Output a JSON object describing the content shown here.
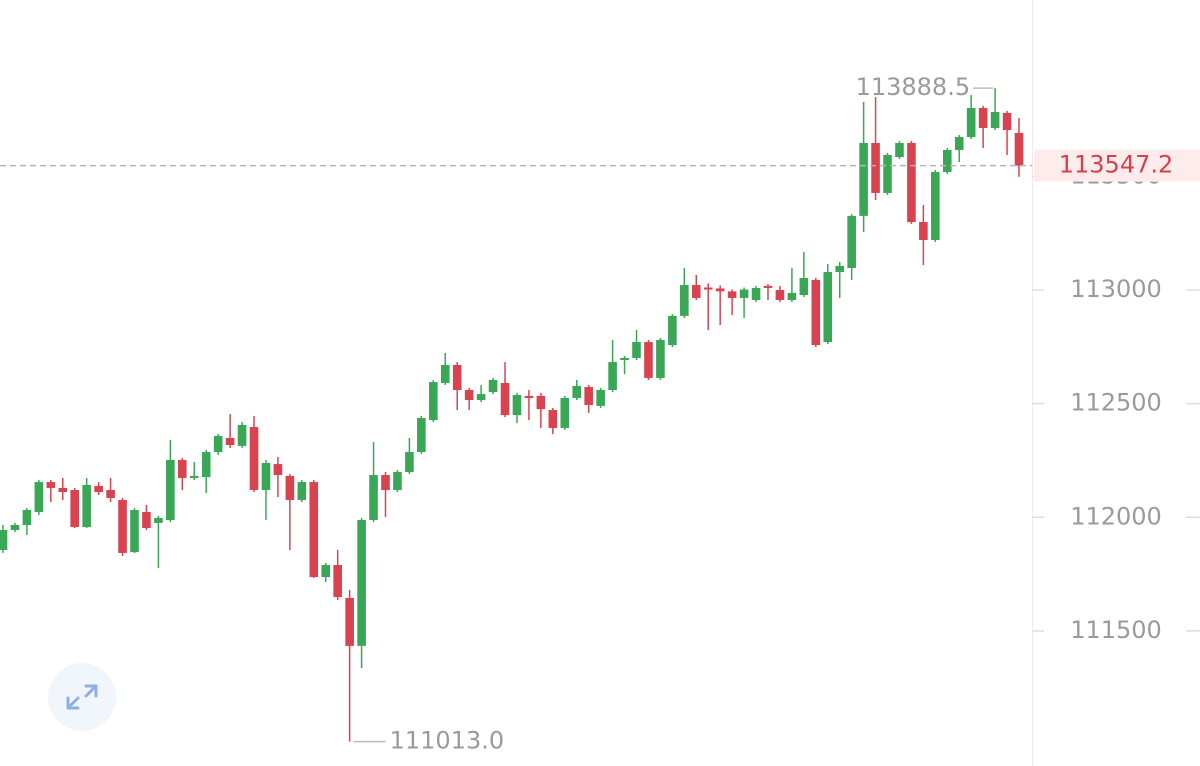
{
  "chart_data": {
    "type": "candlestick",
    "open": [
      111856,
      111944,
      111966,
      112023,
      112155,
      112129,
      112120,
      111957,
      112138,
      112120,
      112076,
      111847,
      112023,
      111975,
      111988,
      112252,
      112173,
      112177,
      112287,
      112349,
      112314,
      112397,
      112120,
      112234,
      112182,
      112076,
      112155,
      111737,
      111790,
      111645,
      111434,
      111988,
      112186,
      112120,
      112199,
      112287,
      112428,
      112591,
      112670,
      112560,
      112516,
      112551,
      112591,
      112450,
      112534,
      112534,
      112472,
      112393,
      112525,
      112573,
      112490,
      112560,
      112692,
      112701,
      112771,
      112613,
      112758,
      112886,
      113022,
      113011,
      113007,
      112994,
      112965,
      112956,
      113018,
      113000,
      112956,
      112978,
      113044,
      112771,
      113079,
      113097,
      113326,
      113647,
      113427,
      113585,
      113647,
      113299,
      113220,
      113519,
      113616,
      113673,
      113801,
      113713,
      113779,
      113691
    ],
    "high": [
      111966,
      111975,
      112041,
      112164,
      112164,
      112173,
      112129,
      112173,
      112155,
      112173,
      112085,
      112041,
      112054,
      112006,
      112340,
      112261,
      112243,
      112296,
      112366,
      112454,
      112419,
      112446,
      112252,
      112265,
      112190,
      112164,
      112164,
      111799,
      111856,
      111680,
      111997,
      112331,
      112199,
      112208,
      112349,
      112446,
      112604,
      112723,
      112683,
      112569,
      112582,
      112613,
      112683,
      112547,
      112560,
      112547,
      112481,
      112534,
      112604,
      112582,
      112569,
      112780,
      112710,
      112824,
      112780,
      112789,
      112894,
      113097,
      113066,
      113029,
      113020,
      113002,
      113011,
      113018,
      113026,
      113018,
      113097,
      113167,
      113053,
      113114,
      113123,
      113334,
      113827,
      113849,
      113603,
      113656,
      113656,
      113374,
      113528,
      113625,
      113682,
      113858,
      113810,
      113888.5,
      113788,
      113757
    ],
    "low": [
      111843,
      111935,
      111922,
      112010,
      112067,
      112076,
      111953,
      111953,
      112098,
      112067,
      111830,
      111843,
      111944,
      111777,
      111979,
      112120,
      112164,
      112107,
      112274,
      112305,
      112305,
      112111,
      111988,
      112089,
      111856,
      112067,
      111733,
      111715,
      111636,
      111013,
      111337,
      111979,
      112001,
      112111,
      112190,
      112278,
      112419,
      112582,
      112472,
      112472,
      112507,
      112542,
      112441,
      112415,
      112428,
      112393,
      112366,
      112384,
      112516,
      112459,
      112481,
      112551,
      112630,
      112692,
      112604,
      112604,
      112749,
      112877,
      112956,
      112824,
      112846,
      112890,
      112877,
      112947,
      112956,
      112947,
      112947,
      112969,
      112749,
      112762,
      112965,
      113044,
      113255,
      113396,
      113418,
      113576,
      113290,
      113110,
      113211,
      113510,
      113563,
      113664,
      113625,
      113704,
      113594,
      113498
    ],
    "close": [
      111944,
      111966,
      112032,
      112155,
      112129,
      112111,
      111957,
      112142,
      112111,
      112085,
      111843,
      112032,
      111953,
      111997,
      112252,
      112173,
      112182,
      112287,
      112358,
      112318,
      112406,
      112120,
      112239,
      112186,
      112076,
      112155,
      111737,
      111790,
      111649,
      111434,
      111988,
      112186,
      112120,
      112199,
      112287,
      112437,
      112595,
      112670,
      112560,
      112516,
      112542,
      112604,
      112450,
      112538,
      112525,
      112476,
      112393,
      112525,
      112578,
      112494,
      112560,
      112683,
      112701,
      112771,
      112613,
      112780,
      112886,
      113022,
      112965,
      113002,
      112994,
      112965,
      113002,
      113009,
      113009,
      112956,
      112987,
      113053,
      112758,
      113079,
      113106,
      113326,
      113647,
      113427,
      113594,
      113647,
      113299,
      113220,
      113519,
      113616,
      113673,
      113801,
      113713,
      113783,
      113704,
      113547.2
    ],
    "up_color": "#3aa757",
    "down_color": "#d9434f",
    "ylim": [
      110905.6,
      114276
    ],
    "yticks": [
      111500,
      112000,
      112500,
      113000,
      113500
    ],
    "last_price": 113547.2,
    "max_label": {
      "value": 113888.5,
      "label": "113888.5"
    },
    "min_label": {
      "value": 111013,
      "label": "111013.0"
    }
  }
}
